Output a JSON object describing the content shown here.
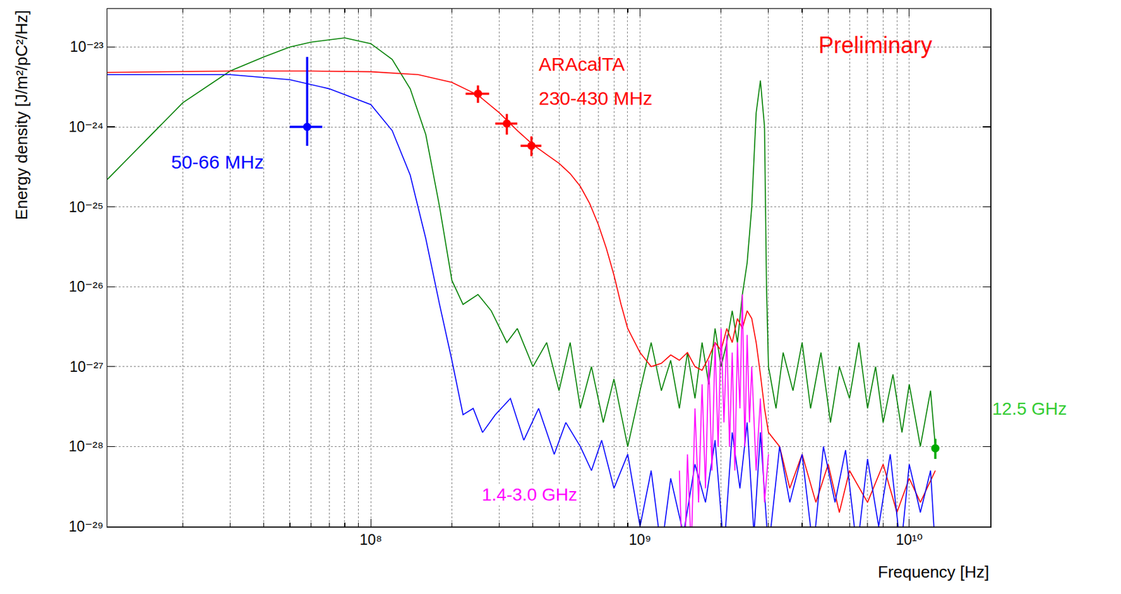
{
  "chart_data": {
    "type": "line",
    "log": true,
    "grid": true,
    "tick_labels": true,
    "xlabel": "Frequency [Hz]",
    "ylabel": "Energy density [J/m²/pC²/Hz]",
    "xlim": [
      10500000.0,
      20000000000.0
    ],
    "ylim": [
      1e-29,
      3e-23
    ],
    "xticks": [
      {
        "value": 100000000.0,
        "label": "10⁸"
      },
      {
        "value": 1000000000.0,
        "label": "10⁹"
      },
      {
        "value": 10000000000.0,
        "label": "10¹⁰"
      }
    ],
    "yticks": [
      {
        "value": 1e-29,
        "label": "10⁻²⁹"
      },
      {
        "value": 1e-28,
        "label": "10⁻²⁸"
      },
      {
        "value": 1e-27,
        "label": "10⁻²⁷"
      },
      {
        "value": 1e-26,
        "label": "10⁻²⁶"
      },
      {
        "value": 1e-25,
        "label": "10⁻²⁵"
      },
      {
        "value": 1e-24,
        "label": "10⁻²⁴"
      },
      {
        "value": 1e-23,
        "label": "10⁻²³"
      }
    ],
    "annotations": [
      {
        "text": "Preliminary",
        "color": "#ff0000"
      },
      {
        "text": "ARAcalTA",
        "color": "#ff0000"
      },
      {
        "text": "230-430 MHz",
        "color": "#ff0000"
      },
      {
        "text": "50-66 MHz",
        "color": "#0000ff"
      },
      {
        "text": "1.4-3.0 GHz",
        "color": "#ff00ff"
      },
      {
        "text": "12.5 GHz",
        "color": "#33cc33"
      }
    ],
    "series": [
      {
        "type": "line",
        "color": "#008000",
        "line_style": "solid",
        "x": [
          10500000.0,
          20000000.0,
          30000000.0,
          40000000.0,
          50000000.0,
          60000000.0,
          80000000.0,
          100000000.0,
          120000000.0,
          140000000.0,
          160000000.0,
          180000000.0,
          200000000.0,
          220000000.0,
          250000000.0,
          280000000.0,
          320000000.0,
          350000000.0,
          400000000.0,
          450000000.0,
          500000000.0,
          550000000.0,
          600000000.0,
          660000000.0,
          730000000.0,
          800000000.0,
          900000000.0,
          1000000000.0,
          1100000000.0,
          1200000000.0,
          1300000000.0,
          1400000000.0,
          1500000000.0,
          1600000000.0,
          1700000000.0,
          1800000000.0,
          1900000000.0,
          2000000000.0,
          2100000000.0,
          2200000000.0,
          2300000000.0,
          2400000000.0,
          2500000000.0,
          2600000000.0,
          2700000000.0,
          2800000000.0,
          2900000000.0,
          2950000000.0,
          3000000000.0,
          3200000000.0,
          3400000000.0,
          3700000000.0,
          4000000000.0,
          4300000000.0,
          4700000000.0,
          5100000000.0,
          5500000000.0,
          6000000000.0,
          6500000000.0,
          7000000000.0,
          7500000000.0,
          8000000000.0,
          8700000000.0,
          9400000000.0,
          10000000000.0,
          11000000000.0,
          12000000000.0,
          12500000000.0
        ],
        "values": [
          2.2e-25,
          2e-24,
          5e-24,
          7.5e-24,
          1e-23,
          1.15e-23,
          1.3e-23,
          1.1e-23,
          7e-24,
          3e-24,
          8e-25,
          1e-25,
          1.2e-26,
          6e-27,
          8e-27,
          5e-27,
          2e-27,
          3e-27,
          1e-27,
          2e-27,
          5e-28,
          2e-27,
          3e-28,
          1e-27,
          2e-28,
          7e-28,
          1e-28,
          5e-28,
          2e-27,
          5e-28,
          1.2e-27,
          3e-28,
          1.5e-27,
          4e-28,
          2e-27,
          6e-28,
          3e-27,
          1e-27,
          2e-27,
          5e-27,
          2e-27,
          8e-27,
          2e-26,
          1e-25,
          1.5e-24,
          3.8e-24,
          1e-24,
          1e-26,
          1e-27,
          3e-28,
          1.5e-27,
          5e-28,
          2e-27,
          3e-28,
          1.5e-27,
          2e-28,
          1e-27,
          4e-28,
          2e-27,
          3e-28,
          1e-27,
          2e-28,
          8e-28,
          1.5e-28,
          6e-28,
          1e-28,
          5e-28,
          1e-28
        ]
      },
      {
        "type": "line",
        "color": "#ff0000",
        "line_style": "solid",
        "x": [
          10500000.0,
          30000000.0,
          60000000.0,
          100000000.0,
          150000000.0,
          200000000.0,
          250000000.0,
          300000000.0,
          350000000.0,
          400000000.0,
          450000000.0,
          500000000.0,
          550000000.0,
          600000000.0,
          650000000.0,
          700000000.0,
          750000000.0,
          800000000.0,
          850000000.0,
          900000000.0,
          1000000000.0,
          1100000000.0,
          1200000000.0,
          1300000000.0,
          1400000000.0,
          1500000000.0,
          1600000000.0,
          1700000000.0,
          1800000000.0,
          1900000000.0,
          2000000000.0,
          2100000000.0,
          2200000000.0,
          2300000000.0,
          2400000000.0,
          2500000000.0,
          2600000000.0,
          2700000000.0,
          2800000000.0,
          2900000000.0,
          3000000000.0,
          3300000000.0,
          3600000000.0,
          4000000000.0,
          4500000000.0,
          5000000000.0,
          5500000000.0,
          6000000000.0,
          7000000000.0,
          8000000000.0,
          9000000000.0,
          10000000000.0,
          11000000000.0,
          12500000000.0
        ],
        "values": [
          4.8e-24,
          5e-24,
          5e-24,
          4.9e-24,
          4.5e-24,
          3.6e-24,
          2.5e-24,
          1.5e-24,
          9e-25,
          6e-25,
          4.5e-25,
          3.5e-25,
          2.6e-25,
          1.8e-25,
          1.1e-25,
          6e-26,
          3e-26,
          1.4e-26,
          6e-27,
          3e-27,
          1.5e-27,
          1e-27,
          1.1e-27,
          1.4e-27,
          1.2e-27,
          1.5e-27,
          1e-27,
          9e-28,
          1.3e-27,
          2e-27,
          1.6e-27,
          3e-27,
          2e-27,
          4e-27,
          3e-27,
          5e-27,
          4e-27,
          2e-27,
          8e-28,
          3e-28,
          1.5e-28,
          1e-28,
          3e-29,
          8e-29,
          2e-29,
          6e-29,
          1.5e-29,
          5e-29,
          2e-29,
          6e-29,
          1.5e-29,
          4e-29,
          2e-29,
          5e-29
        ]
      },
      {
        "type": "line",
        "color": "#0000ff",
        "line_style": "solid",
        "x": [
          10500000.0,
          30000000.0,
          50000000.0,
          70000000.0,
          100000000.0,
          120000000.0,
          140000000.0,
          160000000.0,
          180000000.0,
          200000000.0,
          220000000.0,
          240000000.0,
          260000000.0,
          290000000.0,
          330000000.0,
          370000000.0,
          420000000.0,
          480000000.0,
          530000000.0,
          600000000.0,
          660000000.0,
          720000000.0,
          800000000.0,
          900000000.0,
          1000000000.0,
          1100000000.0,
          1200000000.0,
          1300000000.0,
          1450000000.0,
          1600000000.0,
          1750000000.0,
          1900000000.0,
          2050000000.0,
          2200000000.0,
          2350000000.0,
          2500000000.0,
          2650000000.0,
          2800000000.0,
          3000000000.0,
          3300000000.0,
          3600000000.0,
          4000000000.0,
          4400000000.0,
          4800000000.0,
          5300000000.0,
          5800000000.0,
          6400000000.0,
          7000000000.0,
          7700000000.0,
          8500000000.0,
          9300000000.0,
          10000000000.0,
          11000000000.0,
          12000000000.0,
          12500000000.0
        ],
        "values": [
          4.5e-24,
          4.5e-24,
          3.9e-24,
          3e-24,
          1.9e-24,
          9e-25,
          2.5e-25,
          4e-26,
          6e-27,
          1.2e-27,
          2.5e-28,
          3e-28,
          1.5e-28,
          2.5e-28,
          4e-28,
          1.2e-28,
          3e-28,
          8e-29,
          2e-28,
          1e-28,
          5e-29,
          1.2e-28,
          3e-29,
          8e-29,
          1e-29,
          5e-29,
          5e-30,
          4e-29,
          8e-30,
          6e-29,
          2e-29,
          1.2e-28,
          5e-30,
          1.5e-28,
          3e-29,
          2e-28,
          8e-30,
          1.5e-28,
          5e-30,
          1e-28,
          2e-29,
          8e-29,
          5e-30,
          1e-28,
          2e-29,
          9e-29,
          5e-30,
          7e-29,
          1e-29,
          8e-29,
          5e-30,
          6e-29,
          1.5e-29,
          5e-29,
          5e-30
        ]
      },
      {
        "type": "line",
        "color": "#ff00ff",
        "line_style": "solid",
        "x": [
          1400000000.0,
          1450000000.0,
          1500000000.0,
          1550000000.0,
          1600000000.0,
          1650000000.0,
          1700000000.0,
          1750000000.0,
          1800000000.0,
          1850000000.0,
          1900000000.0,
          1950000000.0,
          2000000000.0,
          2050000000.0,
          2100000000.0,
          2150000000.0,
          2200000000.0,
          2250000000.0,
          2300000000.0,
          2350000000.0,
          2400000000.0,
          2450000000.0,
          2500000000.0,
          2550000000.0,
          2600000000.0,
          2700000000.0,
          2800000000.0,
          2900000000.0,
          3000000000.0
        ],
        "values": [
          5e-29,
          1e-30,
          8e-29,
          5e-30,
          3e-28,
          2e-29,
          6e-28,
          3e-29,
          1.2e-27,
          5e-29,
          2e-27,
          1e-28,
          3e-27,
          2e-28,
          2.5e-27,
          1e-28,
          1.5e-27,
          5e-29,
          2e-27,
          3e-28,
          8e-27,
          1e-28,
          2.5e-27,
          2e-28,
          1e-27,
          5e-29,
          4e-28,
          2e-29,
          8e-29
        ]
      },
      {
        "type": "scatter",
        "color": "#0000ff",
        "marker": "circle",
        "x": [
          58000000.0
        ],
        "values": [
          1e-24
        ],
        "x_error_minus": [
          8000000.0
        ],
        "x_error_plus": [
          8000000.0
        ],
        "error_minus": [
          4.2e-25
        ],
        "error_plus": [
          6.5e-24
        ]
      },
      {
        "type": "scatter",
        "color": "#ff0000",
        "marker": "circle",
        "x": [
          250000000.0,
          320000000.0,
          395000000.0
        ],
        "values": [
          2.6e-24,
          1.1e-24,
          5.8e-25
        ],
        "x_error_minus": [
          25000000.0,
          30000000.0,
          35000000.0
        ],
        "x_error_plus": [
          25000000.0,
          30000000.0,
          35000000.0
        ],
        "error_minus": [
          6e-25,
          3e-25,
          1.5e-25
        ],
        "error_plus": [
          7e-25,
          3.5e-25,
          1.8e-25
        ]
      },
      {
        "type": "scatter",
        "color": "#00aa00",
        "marker": "circle",
        "x": [
          12500000000.0
        ],
        "values": [
          9.5e-29
        ],
        "x_error_minus": [
          300000000.0
        ],
        "x_error_plus": [
          300000000.0
        ],
        "error_minus": [
          2.5e-29
        ],
        "error_plus": [
          3e-29
        ]
      }
    ]
  }
}
